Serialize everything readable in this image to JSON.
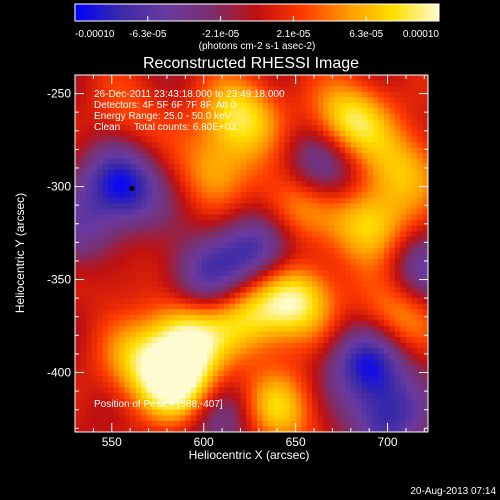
{
  "chart_data": {
    "type": "heatmap",
    "title": "Reconstructed RHESSI Image",
    "xlabel": "Heliocentric X (arcsec)",
    "ylabel": "Heliocentric Y (arcsec)",
    "xlim": [
      530,
      722
    ],
    "ylim": [
      -432,
      -240
    ],
    "x_ticks": [
      550,
      600,
      650,
      700
    ],
    "y_ticks": [
      -250,
      -300,
      -350,
      -400
    ],
    "colorbar": {
      "range": [
        -0.0001,
        0.0001
      ],
      "tick_labels": [
        "-0.00010",
        "-6.3e-05",
        "-2.1e-05",
        "2.1e-05",
        "6.3e-05",
        "0.00010"
      ],
      "unit_label": "(photons cm-2 s-1 asec-2)",
      "colors": [
        "#0000ff",
        "#3a2aa8",
        "#6a3aa0",
        "#7a2f6e",
        "#c01010",
        "#ff3a00",
        "#ff9a00",
        "#ffe000",
        "#fffbd0"
      ]
    },
    "annotations": [
      "26-Dec-2011 23:43:18.000 to 23:49:18.000",
      "Detectors: 4F 5F 6F 7F 8F, Att 0",
      "Energy Range: 25.0 - 50.0 keV",
      "Clean     Total counts: 6.80E+03"
    ],
    "peak_label": "Position of Peak = [588,-407]",
    "peak": [
      588,
      -407
    ],
    "min_marker": [
      561,
      -301
    ],
    "sources": [
      {
        "x": 620,
        "y": -262,
        "v": 0.8
      },
      {
        "x": 680,
        "y": -265,
        "v": 0.9
      },
      {
        "x": 710,
        "y": -290,
        "v": 0.6
      },
      {
        "x": 690,
        "y": -320,
        "v": 0.8
      },
      {
        "x": 648,
        "y": -310,
        "v": 0.6
      },
      {
        "x": 605,
        "y": -290,
        "v": 0.5
      },
      {
        "x": 560,
        "y": -262,
        "v": 0.3
      },
      {
        "x": 650,
        "y": -360,
        "v": 0.9
      },
      {
        "x": 625,
        "y": -370,
        "v": 0.7
      },
      {
        "x": 590,
        "y": -380,
        "v": 0.9
      },
      {
        "x": 565,
        "y": -395,
        "v": 0.6
      },
      {
        "x": 588,
        "y": -407,
        "v": 1.0
      },
      {
        "x": 640,
        "y": -420,
        "v": 0.7
      },
      {
        "x": 705,
        "y": -370,
        "v": 0.6
      },
      {
        "x": 545,
        "y": -340,
        "v": 0.4
      },
      {
        "x": 555,
        "y": -300,
        "v": -1.0
      },
      {
        "x": 535,
        "y": -330,
        "v": -0.6
      },
      {
        "x": 690,
        "y": -395,
        "v": -0.9
      },
      {
        "x": 630,
        "y": -335,
        "v": -0.8
      },
      {
        "x": 600,
        "y": -350,
        "v": -0.6
      },
      {
        "x": 665,
        "y": -290,
        "v": -0.6
      },
      {
        "x": 700,
        "y": -425,
        "v": -0.7
      },
      {
        "x": 610,
        "y": -425,
        "v": -0.5
      },
      {
        "x": 720,
        "y": -345,
        "v": -0.5
      }
    ]
  },
  "footer": {
    "timestamp": "20-Aug-2013 07:14"
  }
}
